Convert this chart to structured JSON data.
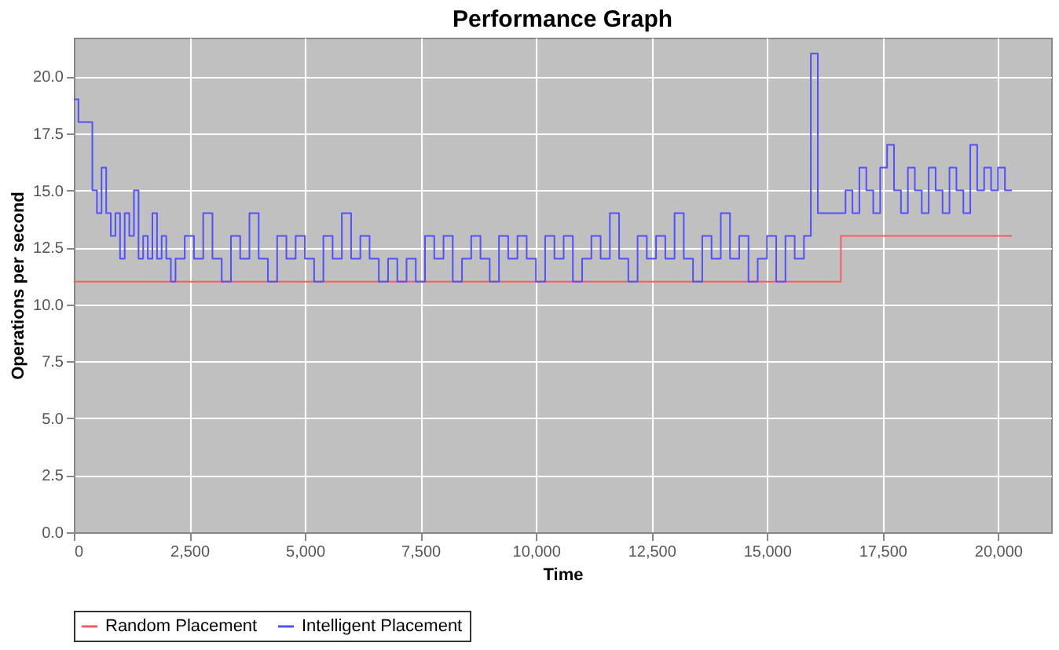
{
  "chart_data": {
    "type": "step",
    "title": "Performance Graph",
    "xlabel": "Time",
    "ylabel": "Operations per second",
    "xlim": [
      0,
      21150
    ],
    "ylim": [
      0,
      21.7
    ],
    "xticks": [
      0,
      {
        "value": 2500,
        "label": "2,500"
      },
      {
        "value": 5000,
        "label": "5,000"
      },
      {
        "value": 7500,
        "label": "7,500"
      },
      {
        "value": 10000,
        "label": "10,000"
      },
      {
        "value": 12500,
        "label": "12,500"
      },
      {
        "value": 15000,
        "label": "15,000"
      },
      {
        "value": 17500,
        "label": "17,500"
      },
      {
        "value": 20000,
        "label": "20,000"
      }
    ],
    "yticks": [
      {
        "value": 0,
        "label": "0.0"
      },
      2.5,
      {
        "value": 5,
        "label": "5.0"
      },
      7.5,
      {
        "value": 10,
        "label": "10.0"
      },
      12.5,
      {
        "value": 15,
        "label": "15.0"
      },
      17.5,
      {
        "value": 20,
        "label": "20.0"
      }
    ],
    "grid": true,
    "legend": "bottom",
    "line_style": "solid",
    "series": [
      {
        "name": "Random Placement",
        "color": "#ff5a5a",
        "x": [
          0,
          16600,
          20300
        ],
        "values": [
          11,
          13,
          13
        ]
      },
      {
        "name": "Intelligent Placement",
        "color": "#5050ff",
        "x": [
          0,
          100,
          400,
          500,
          600,
          700,
          800,
          900,
          1000,
          1100,
          1200,
          1300,
          1400,
          1500,
          1600,
          1700,
          1800,
          1900,
          2000,
          2100,
          2200,
          2400,
          2600,
          2800,
          3000,
          3200,
          3400,
          3600,
          3800,
          4000,
          4200,
          4400,
          4600,
          4800,
          5000,
          5200,
          5400,
          5600,
          5800,
          6000,
          6200,
          6400,
          6600,
          6800,
          7000,
          7200,
          7400,
          7600,
          7800,
          8000,
          8200,
          8400,
          8600,
          8800,
          9000,
          9200,
          9400,
          9600,
          9800,
          10000,
          10200,
          10400,
          10600,
          10800,
          11000,
          11200,
          11400,
          11600,
          11800,
          12000,
          12200,
          12400,
          12600,
          12800,
          13000,
          13200,
          13400,
          13600,
          13800,
          14000,
          14200,
          14400,
          14600,
          14800,
          15000,
          15200,
          15400,
          15600,
          15800,
          15950,
          16100,
          16700,
          16850,
          17000,
          17150,
          17300,
          17450,
          17600,
          17750,
          17900,
          18050,
          18200,
          18350,
          18500,
          18650,
          18800,
          18950,
          19100,
          19250,
          19400,
          19550,
          19700,
          19850,
          20000,
          20150,
          20300
        ],
        "values": [
          19,
          18,
          15,
          14,
          16,
          14,
          13,
          14,
          12,
          14,
          13,
          15,
          12,
          13,
          12,
          14,
          12,
          13,
          12,
          11,
          12,
          13,
          12,
          14,
          12,
          11,
          13,
          12,
          14,
          12,
          11,
          13,
          12,
          13,
          12,
          11,
          13,
          12,
          14,
          12,
          13,
          12,
          11,
          12,
          11,
          12,
          11,
          13,
          12,
          13,
          11,
          12,
          13,
          12,
          11,
          13,
          12,
          13,
          12,
          11,
          13,
          12,
          13,
          11,
          12,
          13,
          12,
          14,
          12,
          11,
          13,
          12,
          13,
          12,
          14,
          12,
          11,
          13,
          12,
          14,
          12,
          13,
          11,
          12,
          13,
          11,
          13,
          12,
          13,
          21,
          14,
          15,
          14,
          16,
          15,
          14,
          16,
          17,
          15,
          14,
          16,
          15,
          14,
          16,
          15,
          14,
          16,
          15,
          14,
          17,
          15,
          16,
          15,
          16,
          15,
          15
        ]
      }
    ]
  }
}
